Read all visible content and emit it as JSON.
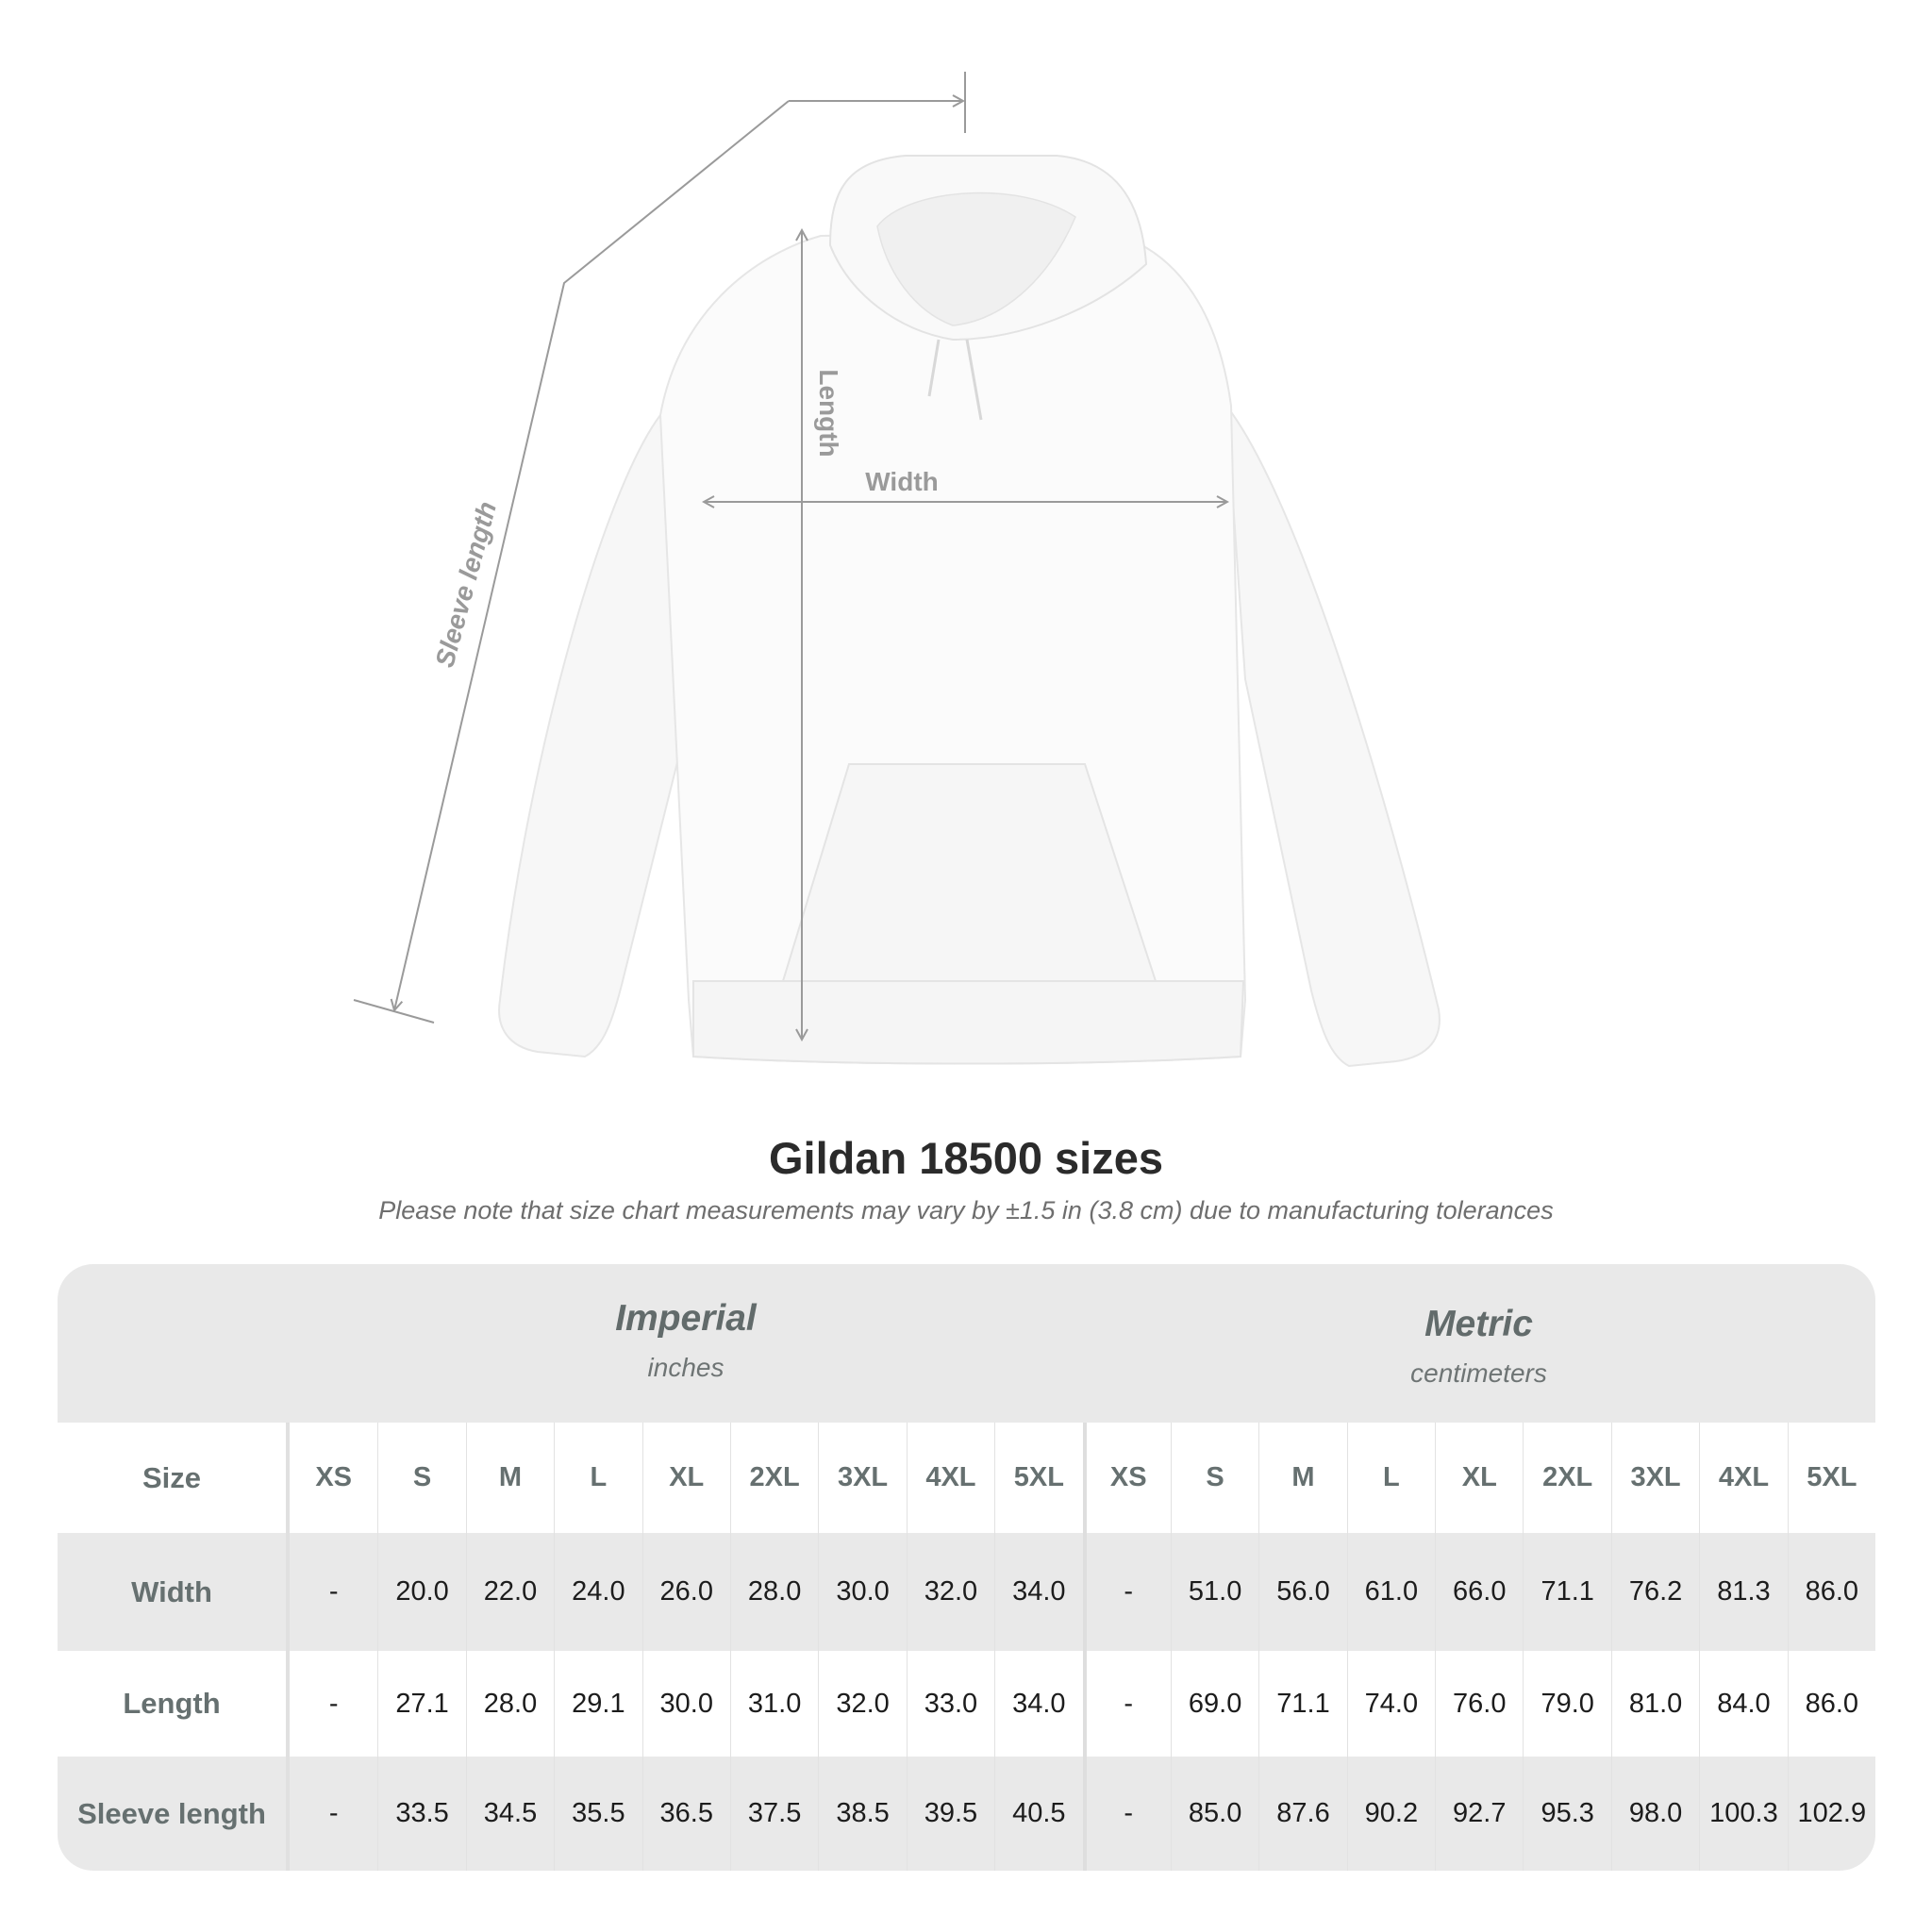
{
  "diagram": {
    "labels": {
      "sleeve": "Sleeve length",
      "length": "Length",
      "width": "Width"
    },
    "garment_color": "#fbfbfb",
    "measure_line_color": "#9a9a9a"
  },
  "title": "Gildan 18500 sizes",
  "subtitle": "Please note that size chart measurements may vary by ±1.5 in (3.8 cm) due to manufacturing tolerances",
  "table": {
    "imperial": {
      "name": "Imperial",
      "unit": "inches"
    },
    "metric": {
      "name": "Metric",
      "unit": "centimeters"
    },
    "size_label": "Size",
    "sizes": [
      "XS",
      "S",
      "M",
      "L",
      "XL",
      "2XL",
      "3XL",
      "4XL",
      "5XL"
    ],
    "rows": [
      {
        "label": "Width",
        "imperial": [
          "-",
          "20.0",
          "22.0",
          "24.0",
          "26.0",
          "28.0",
          "30.0",
          "32.0",
          "34.0"
        ],
        "metric": [
          "-",
          "51.0",
          "56.0",
          "61.0",
          "66.0",
          "71.1",
          "76.2",
          "81.3",
          "86.0"
        ]
      },
      {
        "label": "Length",
        "imperial": [
          "-",
          "27.1",
          "28.0",
          "29.1",
          "30.0",
          "31.0",
          "32.0",
          "33.0",
          "34.0"
        ],
        "metric": [
          "-",
          "69.0",
          "71.1",
          "74.0",
          "76.0",
          "79.0",
          "81.0",
          "84.0",
          "86.0"
        ]
      },
      {
        "label": "Sleeve length",
        "imperial": [
          "-",
          "33.5",
          "34.5",
          "35.5",
          "36.5",
          "37.5",
          "38.5",
          "39.5",
          "40.5"
        ],
        "metric": [
          "-",
          "85.0",
          "87.6",
          "90.2",
          "92.7",
          "95.3",
          "98.0",
          "100.3",
          "102.9"
        ]
      }
    ]
  }
}
